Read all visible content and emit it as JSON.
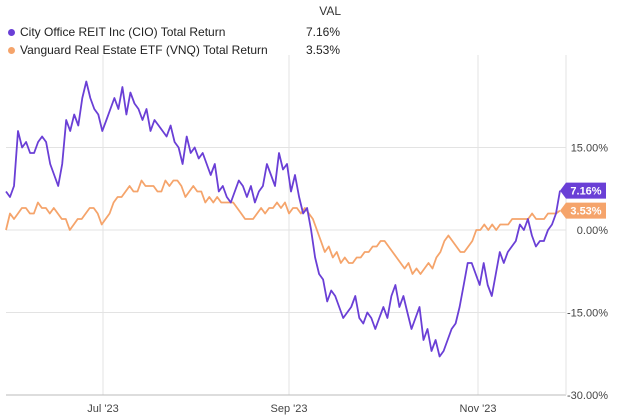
{
  "legend": {
    "header": "VAL",
    "items": [
      {
        "label": "City Office REIT Inc (CIO) Total Return",
        "value": "7.16%",
        "color": "#6a3fd6"
      },
      {
        "label": "Vanguard Real Estate ETF (VNQ) Total Return",
        "value": "3.53%",
        "color": "#f5a46b"
      }
    ]
  },
  "chart_data": {
    "type": "line",
    "x_ticks": [
      "Jul '23",
      "Sep '23",
      "Nov '23"
    ],
    "y_ticks": [
      "15.00%",
      "0.00%",
      "-15.00%",
      "-30.00%"
    ],
    "ylim": [
      -30,
      30
    ],
    "grid": true,
    "series": [
      {
        "name": "City Office REIT Inc (CIO) Total Return",
        "color": "#6a3fd6",
        "end_label": "7.16%",
        "values": [
          7,
          6,
          8,
          18,
          15,
          16,
          14,
          14,
          16,
          17,
          16,
          12,
          10,
          8,
          12,
          20,
          18,
          21,
          19,
          24,
          27,
          24,
          22,
          21,
          18,
          20,
          22,
          24,
          22,
          26,
          21,
          25,
          23,
          22,
          20,
          22,
          18,
          20,
          19,
          18,
          17,
          19,
          16,
          15,
          12,
          17,
          14,
          15,
          13,
          14,
          12,
          10,
          12,
          7,
          8,
          6,
          5,
          7,
          9,
          8,
          6,
          8,
          5,
          7,
          8,
          12,
          10,
          8,
          14,
          11,
          12,
          7,
          10,
          6,
          3,
          4,
          0,
          -5,
          -8,
          -9,
          -13,
          -11,
          -12,
          -14,
          -16,
          -15,
          -14,
          -12,
          -16,
          -17,
          -15,
          -16,
          -18,
          -16,
          -14,
          -16,
          -12,
          -10,
          -14,
          -12,
          -15,
          -18,
          -16,
          -14,
          -20,
          -18,
          -22,
          -20,
          -23,
          -22,
          -20,
          -18,
          -17,
          -14,
          -10,
          -6,
          -6,
          -8,
          -10,
          -6,
          -10,
          -12,
          -8,
          -4,
          -6,
          -4,
          -3,
          -2,
          1,
          0,
          2,
          -1,
          -3,
          -2,
          -2,
          0,
          1,
          3,
          7.16
        ]
      },
      {
        "name": "Vanguard Real Estate ETF (VNQ) Total Return",
        "color": "#f5a46b",
        "end_label": "3.53%",
        "values": [
          0,
          3,
          2,
          3,
          4,
          4,
          3,
          3,
          5,
          4,
          4,
          3,
          4,
          3,
          2,
          2,
          0,
          1,
          2,
          2,
          3,
          4,
          4,
          3,
          1,
          2,
          3,
          5,
          6,
          6,
          7,
          8,
          7,
          7,
          9,
          8,
          8,
          8,
          7,
          7,
          9,
          8,
          9,
          9,
          8,
          6,
          7,
          8,
          7,
          7,
          5,
          6,
          5,
          6,
          5,
          5,
          5,
          5,
          4,
          3,
          2,
          2,
          2,
          3,
          4,
          3,
          4,
          4,
          5,
          4,
          5,
          3,
          4,
          4,
          3,
          4,
          3,
          2,
          0,
          -2,
          -4,
          -3,
          -5,
          -4,
          -6,
          -5,
          -6,
          -6,
          -5,
          -5,
          -4,
          -4,
          -3,
          -3,
          -2,
          -2,
          -3,
          -4,
          -5,
          -6,
          -7,
          -6,
          -8,
          -7,
          -8,
          -7,
          -6,
          -7,
          -5,
          -4,
          -2,
          -1,
          -2,
          -3,
          -4,
          -4,
          -3,
          -2,
          0,
          0,
          1,
          0,
          1,
          0,
          1,
          1,
          1,
          2,
          2,
          2,
          2,
          2,
          3,
          2,
          2,
          2,
          3,
          3,
          3,
          3.53
        ]
      }
    ]
  }
}
